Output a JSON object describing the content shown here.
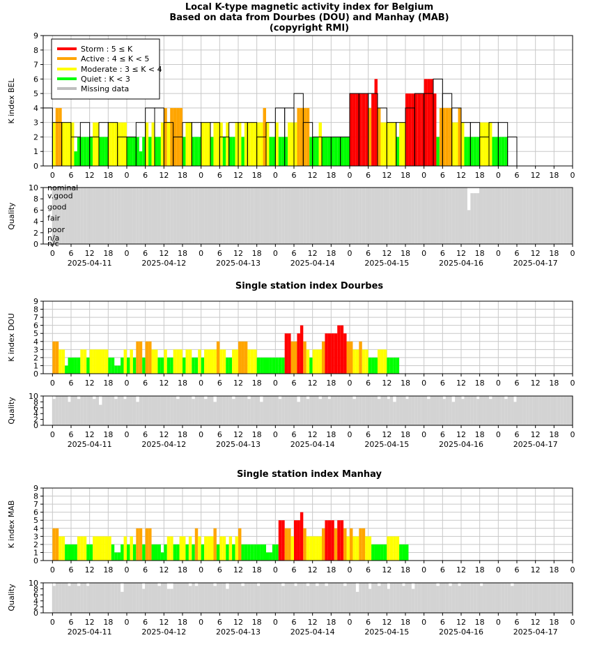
{
  "titles": {
    "main": [
      "Local K-type magnetic activity index for Belgium",
      "Based on data from Dourbes (DOU) and Manhay (MAB)",
      "(copyright RMI)"
    ],
    "dou": "Single station index Dourbes",
    "mab": "Single station index Manhay"
  },
  "axes": {
    "bel_ylabel": "K index BEL",
    "dou_ylabel": "K index DOU",
    "mab_ylabel": "K index MAB",
    "quality_ylabel": "Quality",
    "hour_ticks": [
      "0",
      "6",
      "12",
      "18",
      "0",
      "6",
      "12",
      "18",
      "0",
      "6",
      "12",
      "18",
      "0",
      "6",
      "12",
      "18",
      "0",
      "6",
      "12",
      "18",
      "0",
      "6",
      "12",
      "18",
      "0",
      "6",
      "12",
      "18",
      "0"
    ],
    "dates": [
      "2025-04-11",
      "2025-04-12",
      "2025-04-13",
      "2025-04-14",
      "2025-04-15",
      "2025-04-16",
      "2025-04-17"
    ],
    "k_ticks": [
      "0",
      "1",
      "2",
      "3",
      "4",
      "5",
      "6",
      "7",
      "8",
      "9"
    ],
    "q_ticks_large": [
      "0",
      "2",
      "4",
      "6",
      "8",
      "10"
    ],
    "q_ticks_small": [
      "0",
      "2",
      "4",
      "6",
      "8",
      "10"
    ],
    "quality_levels": [
      "nominal",
      "v.good",
      "good",
      "fair",
      "poor",
      "n/a",
      "n/c"
    ]
  },
  "legend": {
    "items": [
      {
        "label": "Storm : 5 ≤ K",
        "color": "#ff0000"
      },
      {
        "label": "Active : 4 ≤ K < 5",
        "color": "#ffa500"
      },
      {
        "label": "Moderate : 3 ≤ K < 4",
        "color": "#ffff00"
      },
      {
        "label": "Quiet : K < 3",
        "color": "#00ff00"
      },
      {
        "label": "Missing data",
        "color": "#bebebe"
      }
    ]
  },
  "colors": {
    "storm": "#ff0000",
    "active": "#ffa500",
    "moderate": "#ffff00",
    "quiet": "#00ff00",
    "missing": "#bebebe",
    "quality": "#d3d3d3"
  },
  "chart_data": [
    {
      "type": "bar",
      "name": "BEL",
      "x_range_hours": [
        -3,
        168
      ],
      "ylim": [
        0,
        9
      ],
      "k_3h": [
        4,
        3,
        3,
        2,
        3,
        2,
        3,
        3,
        2,
        2,
        3,
        4,
        4,
        3,
        2,
        3,
        3,
        3,
        3,
        2,
        3,
        3,
        3,
        2,
        3,
        4,
        4,
        5,
        3,
        2,
        2,
        2,
        2,
        5,
        5,
        5,
        4,
        3,
        3,
        4,
        5,
        5,
        6,
        5,
        4,
        3,
        3,
        2,
        3,
        3,
        2
      ],
      "k_1h": [
        3,
        4,
        4,
        3,
        3,
        3,
        3,
        1,
        2,
        2,
        2,
        2,
        2,
        3,
        3,
        2,
        2,
        2,
        3,
        3,
        3,
        3,
        3,
        3,
        2,
        2,
        2,
        2,
        1,
        2,
        3,
        2,
        3,
        2,
        2,
        3,
        4,
        3,
        4,
        4,
        4,
        4,
        2,
        3,
        3,
        2,
        2,
        2,
        3,
        3,
        3,
        2,
        3,
        3,
        3,
        2,
        3,
        2,
        2,
        3,
        3,
        2,
        3,
        3,
        3,
        3,
        3,
        3,
        4,
        3,
        2,
        2,
        3,
        2,
        2,
        2,
        3,
        3,
        3,
        4,
        4,
        4,
        4,
        2,
        2,
        2,
        3,
        2,
        2,
        2,
        2,
        2,
        2,
        2,
        2,
        2,
        5,
        5,
        5,
        5,
        5,
        5,
        4,
        5,
        6,
        4,
        3,
        3,
        3,
        3,
        3,
        2,
        3,
        3,
        5,
        5,
        5,
        5,
        5,
        5,
        6,
        6,
        6,
        5,
        2,
        4,
        4,
        4,
        4,
        3,
        3,
        4,
        3,
        2,
        2,
        2,
        2,
        2,
        3,
        3,
        3,
        3,
        2,
        2,
        2,
        2,
        2
      ]
    },
    {
      "type": "bar",
      "name": "DOU",
      "x_range_hours": [
        -3,
        168
      ],
      "ylim": [
        0,
        9
      ],
      "k_1h": [
        4,
        4,
        3,
        3,
        1,
        2,
        2,
        2,
        2,
        3,
        3,
        2,
        3,
        3,
        3,
        3,
        3,
        3,
        2,
        2,
        1,
        1,
        2,
        3,
        2,
        3,
        2,
        4,
        4,
        2,
        4,
        4,
        3,
        3,
        2,
        2,
        3,
        2,
        2,
        3,
        3,
        3,
        2,
        3,
        3,
        2,
        2,
        3,
        2,
        3,
        3,
        3,
        3,
        4,
        3,
        3,
        2,
        2,
        3,
        3,
        4,
        4,
        4,
        3,
        3,
        3,
        2,
        2,
        2,
        2,
        2,
        2,
        2,
        2,
        2,
        5,
        5,
        4,
        4,
        5,
        6,
        4,
        3,
        2,
        3,
        3,
        3,
        4,
        5,
        5,
        5,
        5,
        6,
        6,
        5,
        4,
        4,
        3,
        3,
        4,
        3,
        3,
        2,
        2,
        2,
        3,
        3,
        3,
        2,
        2,
        2,
        2
      ],
      "quality": [
        9,
        10,
        10,
        10,
        10,
        8,
        10,
        10,
        9,
        10,
        10,
        10,
        10,
        9,
        10,
        7,
        10,
        10,
        10,
        10,
        9,
        10,
        10,
        9,
        10,
        10,
        10,
        8,
        10,
        10,
        10,
        10,
        10,
        10,
        10,
        10,
        10,
        10,
        10,
        10,
        9,
        10,
        10,
        10,
        10,
        9,
        10,
        10,
        10,
        9,
        10,
        10,
        8,
        10,
        10,
        10,
        10,
        10,
        9,
        10,
        10,
        10,
        10,
        9,
        10,
        10,
        10,
        8,
        10,
        10,
        10,
        10,
        10,
        9,
        10,
        10,
        10,
        10,
        10,
        8,
        10,
        10,
        9,
        10,
        10,
        10,
        9,
        10,
        10,
        9,
        10,
        10,
        10,
        10,
        10,
        10,
        10,
        9,
        10,
        10,
        10,
        10,
        10,
        10,
        10,
        9,
        10,
        10,
        9,
        10,
        8,
        10,
        10,
        10,
        9,
        10,
        10,
        10,
        10,
        10,
        10,
        9,
        10,
        10,
        10,
        10,
        9,
        10,
        10,
        8,
        10,
        10,
        9,
        10,
        10,
        10,
        10,
        9,
        10,
        10,
        10,
        9,
        10,
        10,
        10,
        10,
        9,
        10,
        10,
        8
      ]
    },
    {
      "type": "bar",
      "name": "MAB",
      "x_range_hours": [
        -3,
        168
      ],
      "ylim": [
        0,
        9
      ],
      "k_1h": [
        4,
        4,
        3,
        3,
        2,
        2,
        2,
        2,
        3,
        3,
        3,
        2,
        2,
        3,
        3,
        3,
        3,
        3,
        3,
        2,
        1,
        1,
        2,
        3,
        2,
        3,
        2,
        4,
        4,
        2,
        4,
        4,
        2,
        2,
        2,
        1,
        2,
        3,
        3,
        2,
        2,
        3,
        3,
        2,
        3,
        2,
        4,
        3,
        2,
        3,
        3,
        3,
        4,
        2,
        3,
        3,
        2,
        3,
        2,
        3,
        4,
        2,
        2,
        2,
        2,
        2,
        2,
        2,
        2,
        1,
        1,
        2,
        2,
        5,
        5,
        4,
        4,
        3,
        5,
        5,
        6,
        4,
        3,
        3,
        3,
        3,
        3,
        4,
        5,
        5,
        5,
        4,
        5,
        5,
        4,
        3,
        4,
        3,
        3,
        4,
        4,
        3,
        3,
        2,
        2,
        2,
        2,
        2,
        3,
        3,
        3,
        3,
        2,
        2,
        2
      ],
      "quality": [
        9,
        10,
        10,
        10,
        10,
        9,
        10,
        10,
        9,
        10,
        10,
        9,
        10,
        10,
        10,
        10,
        10,
        10,
        10,
        10,
        10,
        10,
        7,
        10,
        10,
        10,
        10,
        10,
        10,
        8,
        10,
        10,
        10,
        10,
        9,
        10,
        10,
        8,
        8,
        10,
        10,
        10,
        10,
        10,
        9,
        10,
        9,
        10,
        10,
        10,
        10,
        10,
        9,
        10,
        10,
        10,
        8,
        10,
        10,
        10,
        10,
        9,
        10,
        10,
        10,
        10,
        9,
        10,
        10,
        10,
        10,
        10,
        10,
        10,
        9,
        10,
        10,
        10,
        9,
        10,
        10,
        10,
        9,
        10,
        10,
        9,
        10,
        10,
        9,
        10,
        10,
        10,
        10,
        10,
        9,
        10,
        10,
        10,
        7,
        10,
        10,
        10,
        8,
        10,
        10,
        9,
        10,
        10,
        8,
        10,
        10,
        10,
        10,
        9,
        10,
        10,
        8,
        10,
        10,
        10,
        10,
        10,
        10,
        10,
        9,
        10,
        10,
        10,
        9,
        10,
        10,
        9,
        10,
        10,
        10,
        10,
        10,
        10,
        9,
        10,
        10,
        10,
        10,
        10,
        10,
        10,
        10,
        10,
        9,
        10
      ]
    }
  ]
}
